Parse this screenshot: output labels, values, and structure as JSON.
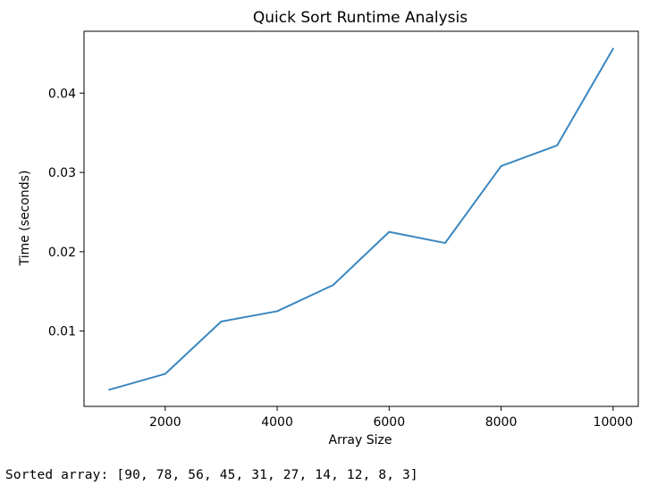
{
  "chart_data": {
    "type": "line",
    "title": "Quick Sort Runtime Analysis",
    "xlabel": "Array Size",
    "ylabel": "Time (seconds)",
    "x": [
      1000,
      2000,
      3000,
      4000,
      5000,
      6000,
      7000,
      8000,
      9000,
      10000
    ],
    "series": [
      {
        "values": [
          0.0026,
          0.0046,
          0.0112,
          0.0125,
          0.0158,
          0.0225,
          0.0211,
          0.0308,
          0.0334,
          0.0456
        ],
        "color": "#3a87c0"
      }
    ],
    "xlim": [
      550,
      10450
    ],
    "ylim": [
      0.0005,
      0.0478
    ],
    "xticks": [
      2000,
      4000,
      6000,
      8000,
      10000
    ],
    "xtick_labels": [
      "2000",
      "4000",
      "6000",
      "8000",
      "10000"
    ],
    "yticks": [
      0.01,
      0.02,
      0.03,
      0.04
    ],
    "ytick_labels": [
      "0.01",
      "0.02",
      "0.03",
      "0.04"
    ],
    "grid": false,
    "legend": "none"
  },
  "console": {
    "output_text": "Sorted array: [90, 78, 56, 45, 31, 27, 14, 12, 8, 3]"
  }
}
